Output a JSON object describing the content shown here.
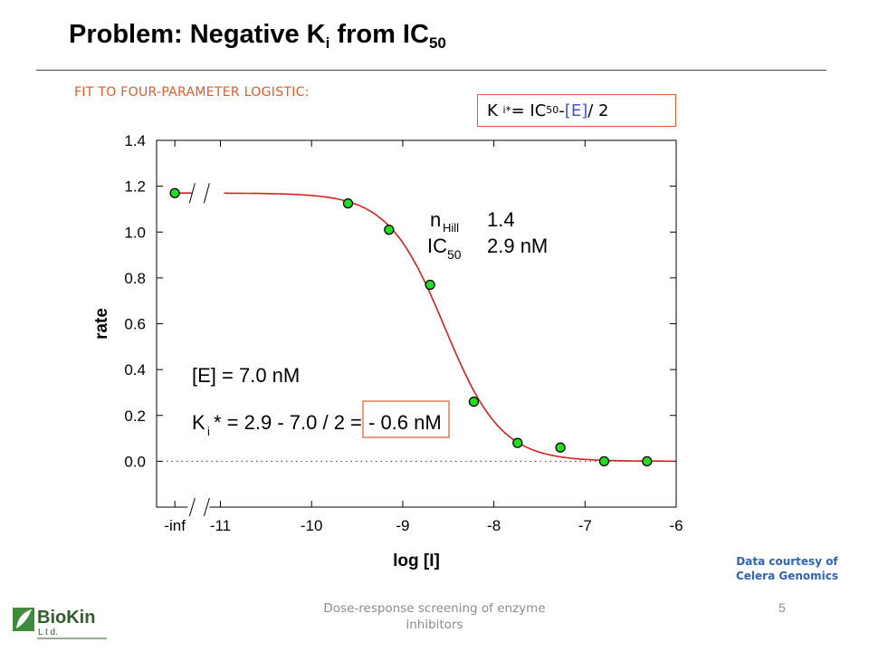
{
  "slide": {
    "title_main": "Problem: Negative K",
    "title_sub_i": "i",
    "title_from": " from IC",
    "title_sub_50": "50",
    "fit_label": "FIT TO FOUR-PARAMETER LOGISTIC:",
    "formula": {
      "k": "K",
      "i": "i",
      "star": "*",
      "eq": " = IC",
      "sub50": "50",
      "minus": " - ",
      "e": "[E]",
      "div": " / 2"
    },
    "credit_line1": "Data courtesy of",
    "credit_line2": "Celera Genomics",
    "footer_line1": "Dose-response screening of enzyme",
    "footer_line2": "inhibitors",
    "page_number": "5",
    "logo_name": "BioKin",
    "logo_sub": "L t d."
  },
  "chart_data": {
    "type": "scatter",
    "xlabel": "log [I]",
    "ylabel": "rate",
    "xlim": [
      -11.7,
      -6
    ],
    "ylim": [
      -0.2,
      1.4
    ],
    "x_ticks": [
      {
        "v": -11.5,
        "label": "-inf"
      },
      {
        "v": -11,
        "label": "-11"
      },
      {
        "v": -10,
        "label": "-10"
      },
      {
        "v": -9,
        "label": "-9"
      },
      {
        "v": -8,
        "label": "-8"
      },
      {
        "v": -7,
        "label": "-7"
      },
      {
        "v": -6,
        "label": "-6"
      }
    ],
    "y_ticks": [
      {
        "v": 0.0,
        "label": "0.0"
      },
      {
        "v": 0.2,
        "label": "0.2"
      },
      {
        "v": 0.4,
        "label": "0.4"
      },
      {
        "v": 0.6,
        "label": "0.6"
      },
      {
        "v": 0.8,
        "label": "0.8"
      },
      {
        "v": 1.0,
        "label": "1.0"
      },
      {
        "v": 1.2,
        "label": "1.2"
      },
      {
        "v": 1.4,
        "label": "1.4"
      }
    ],
    "axis_break_x": -11.2,
    "points": [
      {
        "x": -11.5,
        "y": 1.17
      },
      {
        "x": -9.6,
        "y": 1.125
      },
      {
        "x": -9.15,
        "y": 1.01
      },
      {
        "x": -8.7,
        "y": 0.77
      },
      {
        "x": -8.22,
        "y": 0.26
      },
      {
        "x": -7.74,
        "y": 0.08
      },
      {
        "x": -7.27,
        "y": 0.06
      },
      {
        "x": -6.79,
        "y": 0.0
      },
      {
        "x": -6.32,
        "y": 0.0
      }
    ],
    "fit": {
      "top": 1.17,
      "bottom": 0.0,
      "log_ic50": -8.54,
      "hill": 1.4
    },
    "point_color": "#22dd22",
    "curve_color": "#d42020",
    "zero_line": "dotted",
    "annotations": {
      "nhill_n": "n",
      "nhill_sub": "Hill",
      "nhill_val": "1.4",
      "ic50_ic": "IC",
      "ic50_sub": "50",
      "ic50_val": "2.9 nM",
      "enzyme": "[E] = 7.0 nM",
      "ki_k": "K",
      "ki_i": "i",
      "ki_rest": "* = 2.9 - 7.0 / 2 = ",
      "ki_result": "- 0.6 nM"
    }
  }
}
